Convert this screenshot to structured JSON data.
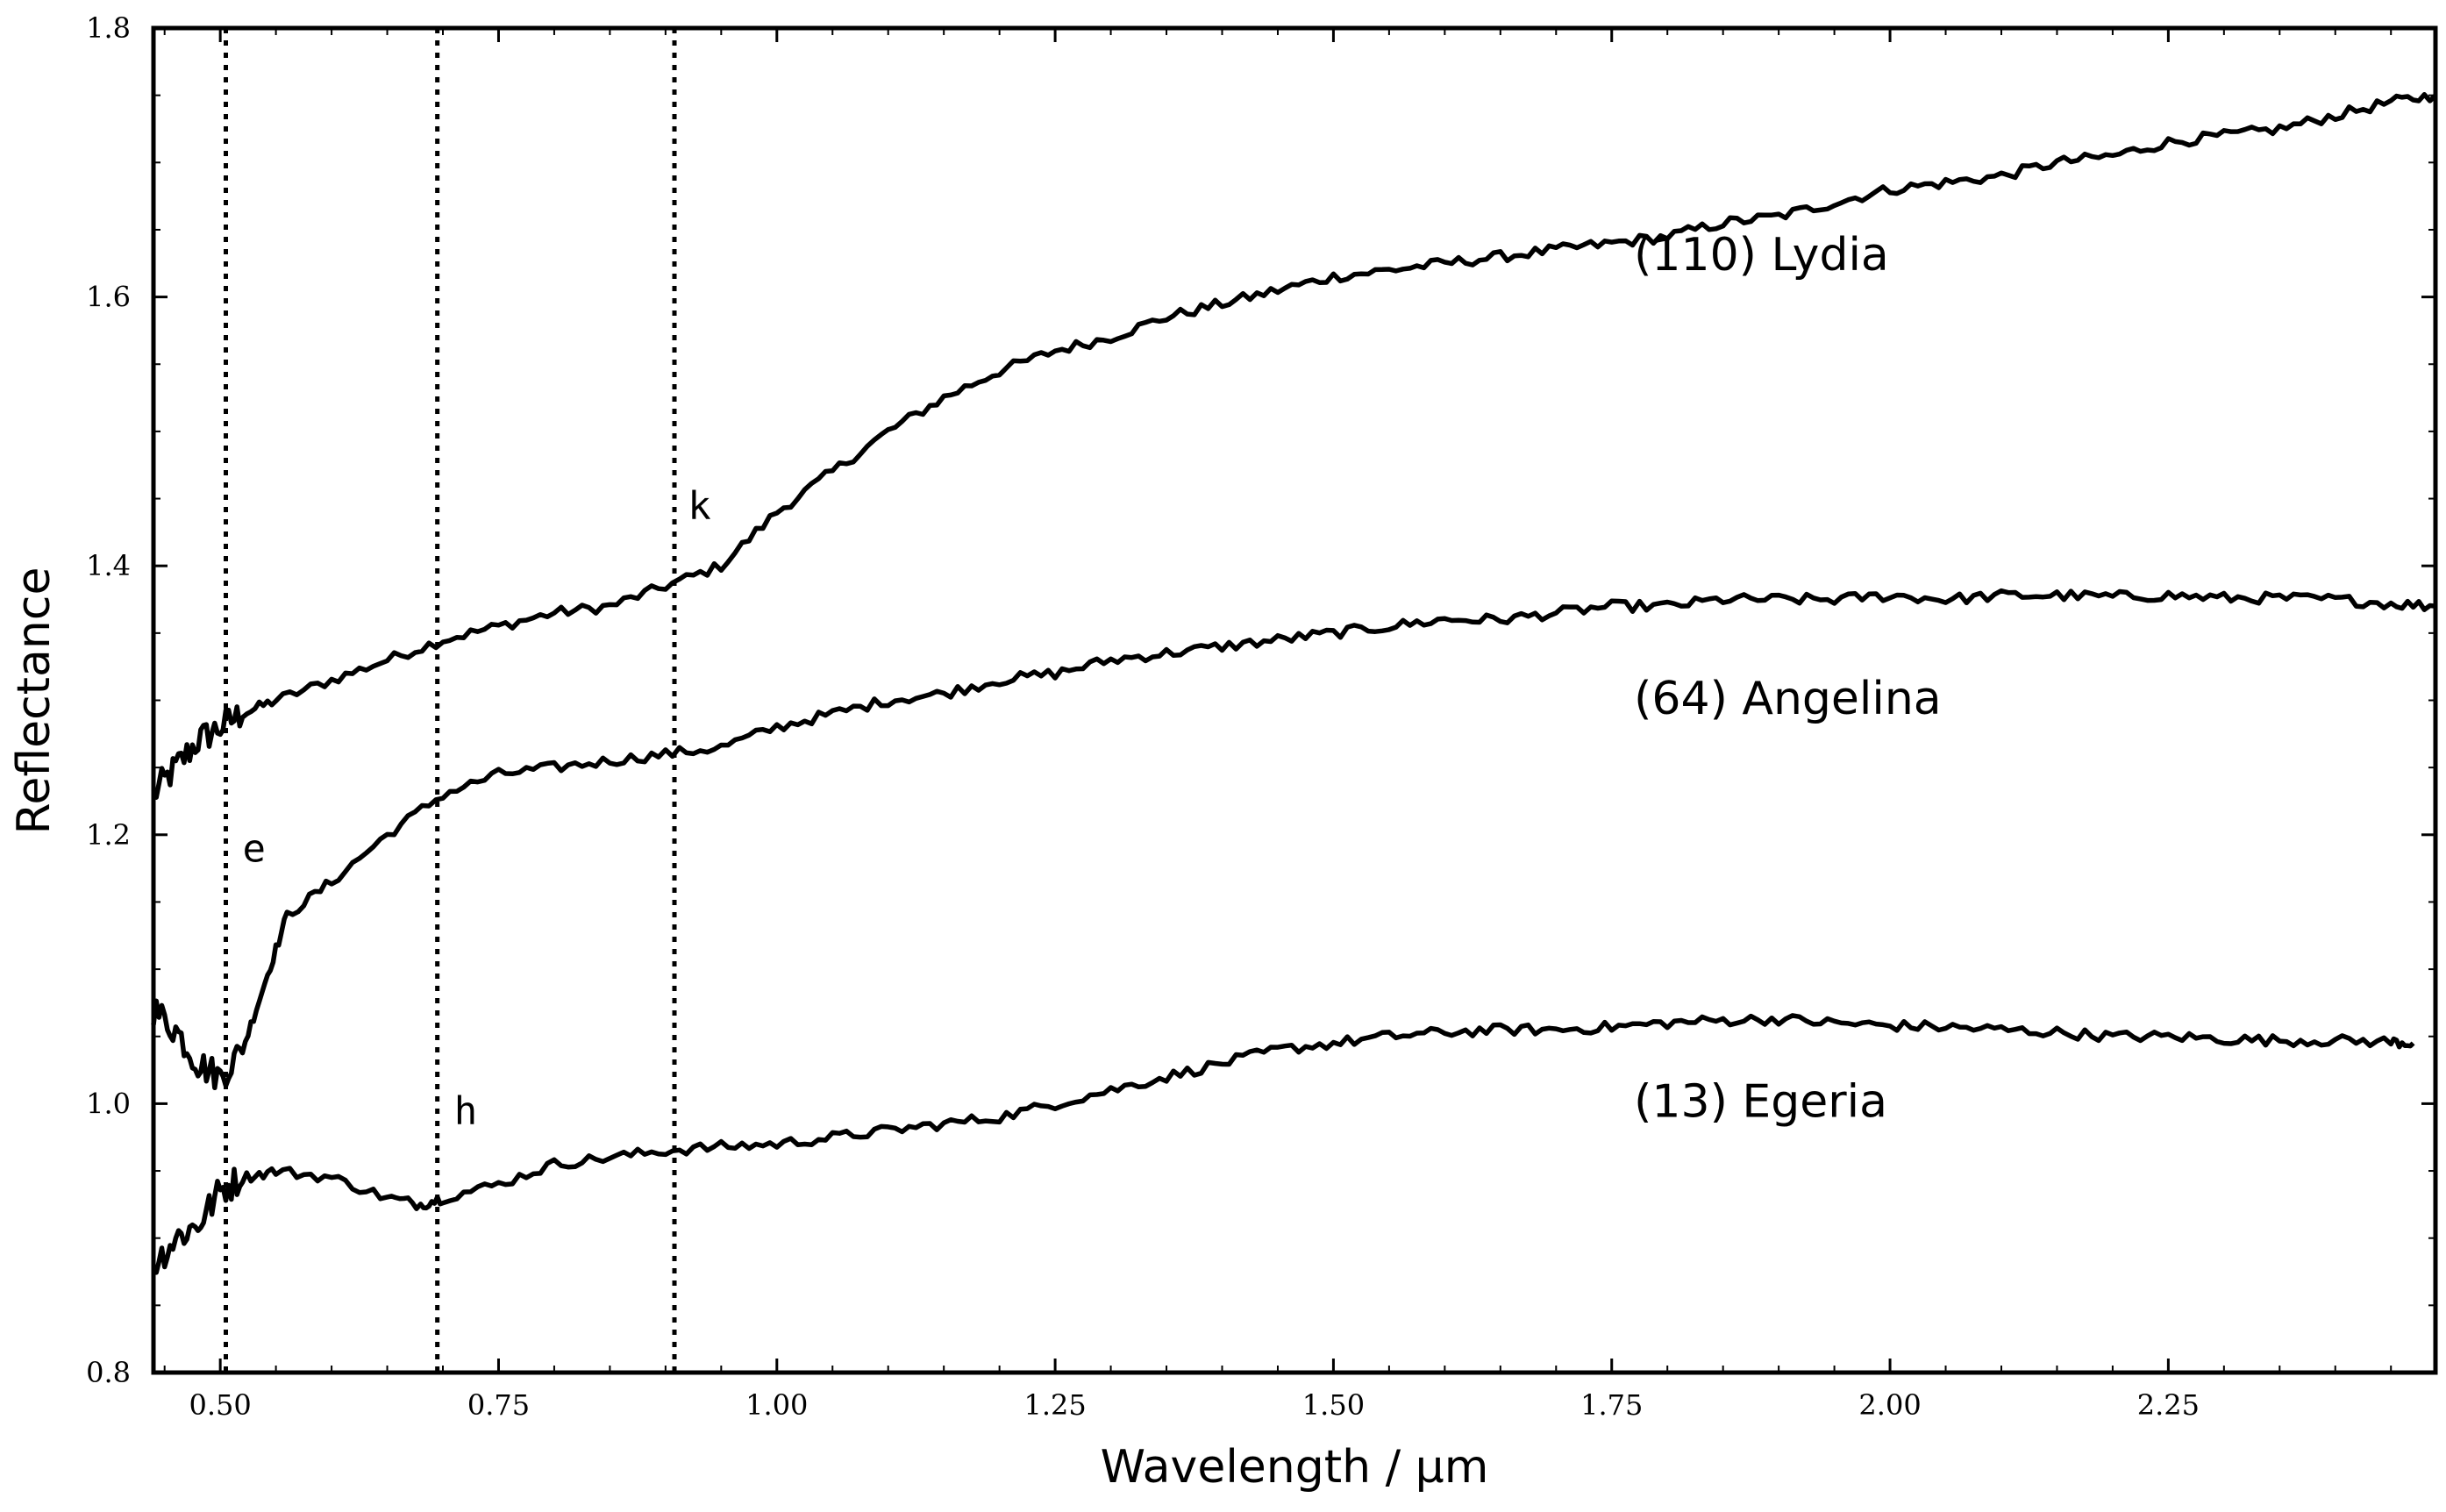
{
  "chart_data": {
    "type": "line",
    "title": "",
    "xlabel": "Wavelength / μm",
    "ylabel": "Reflectance",
    "xlim": [
      0.44,
      2.49
    ],
    "ylim": [
      0.8,
      1.8
    ],
    "x_ticks": [
      0.5,
      0.75,
      1.0,
      1.25,
      1.5,
      1.75,
      2.0,
      2.25
    ],
    "x_tick_labels": [
      "0.50",
      "0.75",
      "1.00",
      "1.25",
      "1.50",
      "1.75",
      "2.00",
      "2.25"
    ],
    "y_ticks": [
      0.8,
      1.0,
      1.2,
      1.4,
      1.6,
      1.8
    ],
    "y_tick_labels": [
      "0.8",
      "1.0",
      "1.2",
      "1.4",
      "1.6",
      "1.8"
    ],
    "grid": false,
    "legend": "none",
    "series": [
      {
        "name": "(110) Lydia",
        "label_at": [
          1.77,
          1.62
        ],
        "points": [
          [
            0.44,
            1.23
          ],
          [
            0.46,
            1.25
          ],
          [
            0.48,
            1.27
          ],
          [
            0.5,
            1.28
          ],
          [
            0.52,
            1.29
          ],
          [
            0.55,
            1.3
          ],
          [
            0.6,
            1.315
          ],
          [
            0.65,
            1.33
          ],
          [
            0.7,
            1.345
          ],
          [
            0.75,
            1.355
          ],
          [
            0.8,
            1.365
          ],
          [
            0.85,
            1.37
          ],
          [
            0.9,
            1.385
          ],
          [
            0.95,
            1.4
          ],
          [
            1.0,
            1.44
          ],
          [
            1.05,
            1.47
          ],
          [
            1.1,
            1.5
          ],
          [
            1.15,
            1.525
          ],
          [
            1.2,
            1.545
          ],
          [
            1.25,
            1.56
          ],
          [
            1.3,
            1.57
          ],
          [
            1.35,
            1.585
          ],
          [
            1.4,
            1.595
          ],
          [
            1.45,
            1.605
          ],
          [
            1.5,
            1.615
          ],
          [
            1.55,
            1.62
          ],
          [
            1.6,
            1.625
          ],
          [
            1.65,
            1.63
          ],
          [
            1.7,
            1.635
          ],
          [
            1.75,
            1.64
          ],
          [
            1.8,
            1.645
          ],
          [
            1.85,
            1.655
          ],
          [
            1.9,
            1.66
          ],
          [
            1.95,
            1.67
          ],
          [
            2.0,
            1.68
          ],
          [
            2.05,
            1.685
          ],
          [
            2.1,
            1.69
          ],
          [
            2.15,
            1.7
          ],
          [
            2.2,
            1.705
          ],
          [
            2.25,
            1.715
          ],
          [
            2.3,
            1.72
          ],
          [
            2.35,
            1.725
          ],
          [
            2.4,
            1.735
          ],
          [
            2.45,
            1.745
          ],
          [
            2.49,
            1.75
          ]
        ]
      },
      {
        "name": "(64) Angelina",
        "label_at": [
          1.77,
          1.29
        ],
        "points": [
          [
            0.44,
            1.07
          ],
          [
            0.46,
            1.055
          ],
          [
            0.48,
            1.03
          ],
          [
            0.5,
            1.02
          ],
          [
            0.52,
            1.04
          ],
          [
            0.54,
            1.09
          ],
          [
            0.56,
            1.14
          ],
          [
            0.6,
            1.165
          ],
          [
            0.65,
            1.2
          ],
          [
            0.7,
            1.23
          ],
          [
            0.75,
            1.245
          ],
          [
            0.8,
            1.25
          ],
          [
            0.85,
            1.255
          ],
          [
            0.9,
            1.26
          ],
          [
            0.95,
            1.265
          ],
          [
            1.0,
            1.28
          ],
          [
            1.05,
            1.29
          ],
          [
            1.1,
            1.3
          ],
          [
            1.15,
            1.305
          ],
          [
            1.2,
            1.315
          ],
          [
            1.25,
            1.32
          ],
          [
            1.3,
            1.33
          ],
          [
            1.35,
            1.335
          ],
          [
            1.4,
            1.34
          ],
          [
            1.45,
            1.345
          ],
          [
            1.5,
            1.35
          ],
          [
            1.55,
            1.355
          ],
          [
            1.6,
            1.36
          ],
          [
            1.65,
            1.36
          ],
          [
            1.7,
            1.365
          ],
          [
            1.75,
            1.37
          ],
          [
            1.8,
            1.37
          ],
          [
            1.85,
            1.375
          ],
          [
            1.9,
            1.375
          ],
          [
            1.95,
            1.375
          ],
          [
            2.0,
            1.378
          ],
          [
            2.05,
            1.375
          ],
          [
            2.1,
            1.378
          ],
          [
            2.15,
            1.378
          ],
          [
            2.2,
            1.377
          ],
          [
            2.25,
            1.378
          ],
          [
            2.3,
            1.376
          ],
          [
            2.35,
            1.376
          ],
          [
            2.4,
            1.375
          ],
          [
            2.45,
            1.372
          ],
          [
            2.49,
            1.37
          ]
        ]
      },
      {
        "name": "(13) Egeria",
        "label_at": [
          1.77,
          0.99
        ],
        "points": [
          [
            0.44,
            0.88
          ],
          [
            0.46,
            0.9
          ],
          [
            0.48,
            0.91
          ],
          [
            0.5,
            0.935
          ],
          [
            0.52,
            0.945
          ],
          [
            0.55,
            0.95
          ],
          [
            0.6,
            0.945
          ],
          [
            0.65,
            0.93
          ],
          [
            0.68,
            0.925
          ],
          [
            0.7,
            0.93
          ],
          [
            0.75,
            0.94
          ],
          [
            0.8,
            0.955
          ],
          [
            0.85,
            0.96
          ],
          [
            0.9,
            0.965
          ],
          [
            0.95,
            0.968
          ],
          [
            1.0,
            0.97
          ],
          [
            1.05,
            0.975
          ],
          [
            1.1,
            0.98
          ],
          [
            1.15,
            0.985
          ],
          [
            1.2,
            0.99
          ],
          [
            1.25,
            1.0
          ],
          [
            1.3,
            1.01
          ],
          [
            1.35,
            1.02
          ],
          [
            1.4,
            1.03
          ],
          [
            1.45,
            1.04
          ],
          [
            1.5,
            1.045
          ],
          [
            1.55,
            1.05
          ],
          [
            1.6,
            1.053
          ],
          [
            1.65,
            1.055
          ],
          [
            1.7,
            1.055
          ],
          [
            1.75,
            1.057
          ],
          [
            1.8,
            1.06
          ],
          [
            1.85,
            1.062
          ],
          [
            1.9,
            1.063
          ],
          [
            1.95,
            1.06
          ],
          [
            2.0,
            1.058
          ],
          [
            2.05,
            1.057
          ],
          [
            2.1,
            1.055
          ],
          [
            2.15,
            1.053
          ],
          [
            2.2,
            1.05
          ],
          [
            2.25,
            1.05
          ],
          [
            2.3,
            1.048
          ],
          [
            2.35,
            1.047
          ],
          [
            2.4,
            1.047
          ],
          [
            2.45,
            1.046
          ],
          [
            2.47,
            1.045
          ]
        ]
      }
    ],
    "features": [
      {
        "x": 0.505,
        "label": "e",
        "label_at": [
          0.52,
          1.18
        ]
      },
      {
        "x": 0.695,
        "label": "h",
        "label_at": [
          0.71,
          0.985
        ]
      },
      {
        "x": 0.908,
        "label": "k",
        "label_at": [
          0.92,
          1.435
        ]
      }
    ]
  }
}
